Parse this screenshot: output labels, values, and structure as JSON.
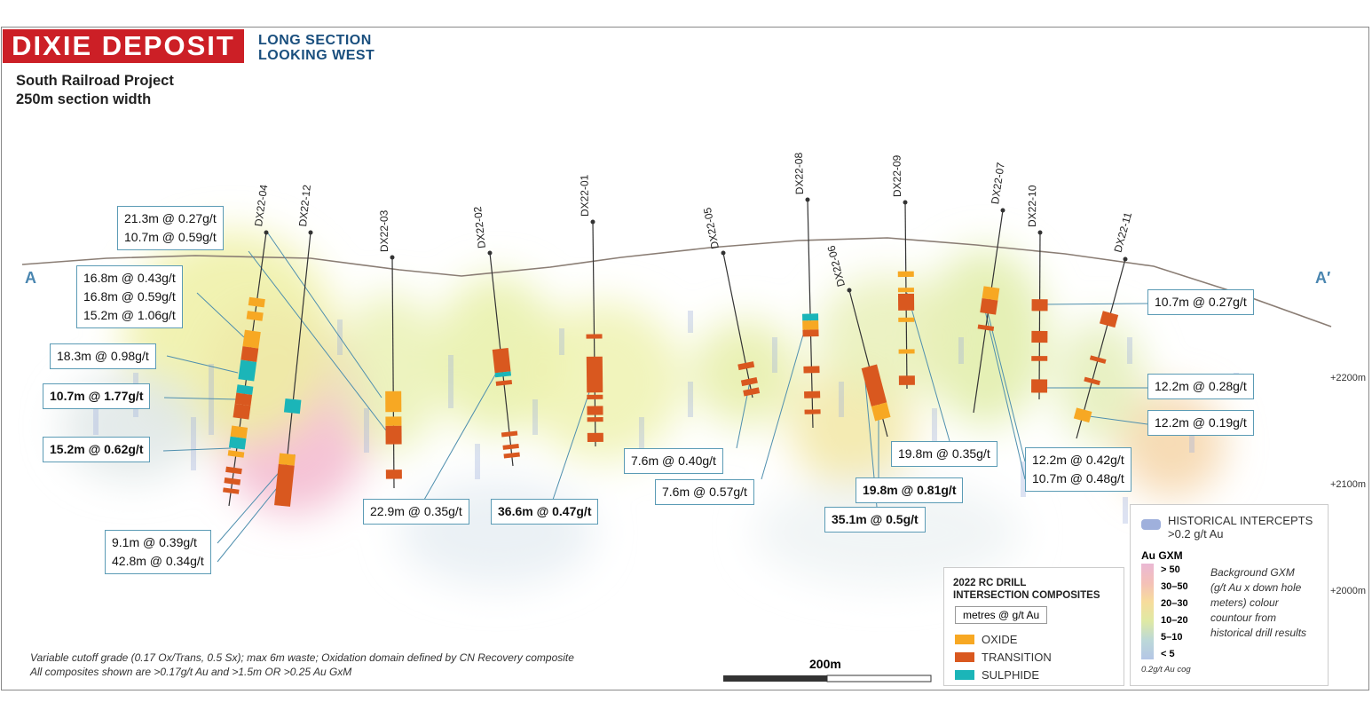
{
  "header": {
    "title": "DIXIE DEPOSIT",
    "subtitle_line1": "LONG SECTION",
    "subtitle_line2": "LOOKING WEST",
    "project": "South Railroad Project",
    "section_width": "250m section width"
  },
  "section_ends": {
    "left": "A",
    "right": "A′"
  },
  "elevations": [
    "+2200m",
    "+2100m",
    "+2000m"
  ],
  "colors": {
    "oxide": "#f7a823",
    "transition": "#d9581f",
    "sulphide": "#1bb5b8",
    "title_bg": "#cc1f26",
    "subtitle": "#1a4f7e",
    "historical": "#9fb0dc",
    "leader": "#4f8fae"
  },
  "drill_holes": [
    "DX22-04",
    "DX22-12",
    "DX22-03",
    "DX22-02",
    "DX22-01",
    "DX22-05",
    "DX22-08",
    "DX22-06",
    "DX22-09",
    "DX22-07",
    "DX22-10",
    "DX22-11"
  ],
  "intercepts": [
    {
      "lines": [
        "21.3m @ 0.27g/t",
        "10.7m @ 0.59g/t"
      ],
      "bold": false
    },
    {
      "lines": [
        "16.8m @ 0.43g/t",
        "16.8m @ 0.59g/t",
        "15.2m @ 1.06g/t"
      ],
      "bold": false
    },
    {
      "lines": [
        "18.3m @ 0.98g/t"
      ],
      "bold": false
    },
    {
      "lines": [
        "10.7m @ 1.77g/t"
      ],
      "bold": true
    },
    {
      "lines": [
        "15.2m @ 0.62g/t"
      ],
      "bold": true
    },
    {
      "lines": [
        "9.1m @ 0.39g/t",
        "42.8m @ 0.34g/t"
      ],
      "bold": false
    },
    {
      "lines": [
        "22.9m @ 0.35g/t"
      ],
      "bold": false
    },
    {
      "lines": [
        "36.6m @ 0.47g/t"
      ],
      "bold": true
    },
    {
      "lines": [
        "7.6m @ 0.40g/t"
      ],
      "bold": false
    },
    {
      "lines": [
        "7.6m @ 0.57g/t"
      ],
      "bold": false
    },
    {
      "lines": [
        "35.1m @ 0.5g/t"
      ],
      "bold": true
    },
    {
      "lines": [
        "19.8m @ 0.81g/t"
      ],
      "bold": true
    },
    {
      "lines": [
        "19.8m @ 0.35g/t"
      ],
      "bold": false
    },
    {
      "lines": [
        "12.2m @ 0.42g/t",
        "10.7m @ 0.48g/t"
      ],
      "bold": false
    },
    {
      "lines": [
        "10.7m @ 0.27g/t"
      ],
      "bold": false
    },
    {
      "lines": [
        "12.2m @ 0.28g/t"
      ],
      "bold": false
    },
    {
      "lines": [
        "12.2m @ 0.19g/t"
      ],
      "bold": false
    }
  ],
  "legend": {
    "title_line1": "2022 RC DRILL",
    "title_line2": "INTERSECTION COMPOSITES",
    "units": "metres @ g/t Au",
    "items": [
      {
        "label": "OXIDE",
        "type": "oxide"
      },
      {
        "label": "TRANSITION",
        "type": "transition"
      },
      {
        "label": "SULPHIDE",
        "type": "sulphide"
      }
    ]
  },
  "gxm_legend": {
    "historical_line1": "HISTORICAL INTERCEPTS",
    "historical_line2": ">0.2 g/t Au",
    "title": "Au GXM",
    "classes": [
      "> 50",
      "30–50",
      "20–30",
      "10–20",
      "5–10",
      "< 5"
    ],
    "ramp_colors": [
      "#eab8d4",
      "#f4c0b8",
      "#f7dc9c",
      "#dfe9a4",
      "#bcd8d8",
      "#b4c6e6"
    ],
    "description": [
      "Background GXM",
      "(g/t Au x down hole",
      "meters) colour",
      "countour from",
      "historical drill results"
    ],
    "cog": "0.2g/t Au cog"
  },
  "scale_bar": {
    "label": "200m"
  },
  "notes": [
    "Variable cutoff grade (0.17 Ox/Trans, 0.5 Sx); max 6m waste; Oxidation domain defined by CN Recovery composite",
    "All composites shown are >0.17g/t Au and >1.5m OR >0.25 Au GxM"
  ]
}
